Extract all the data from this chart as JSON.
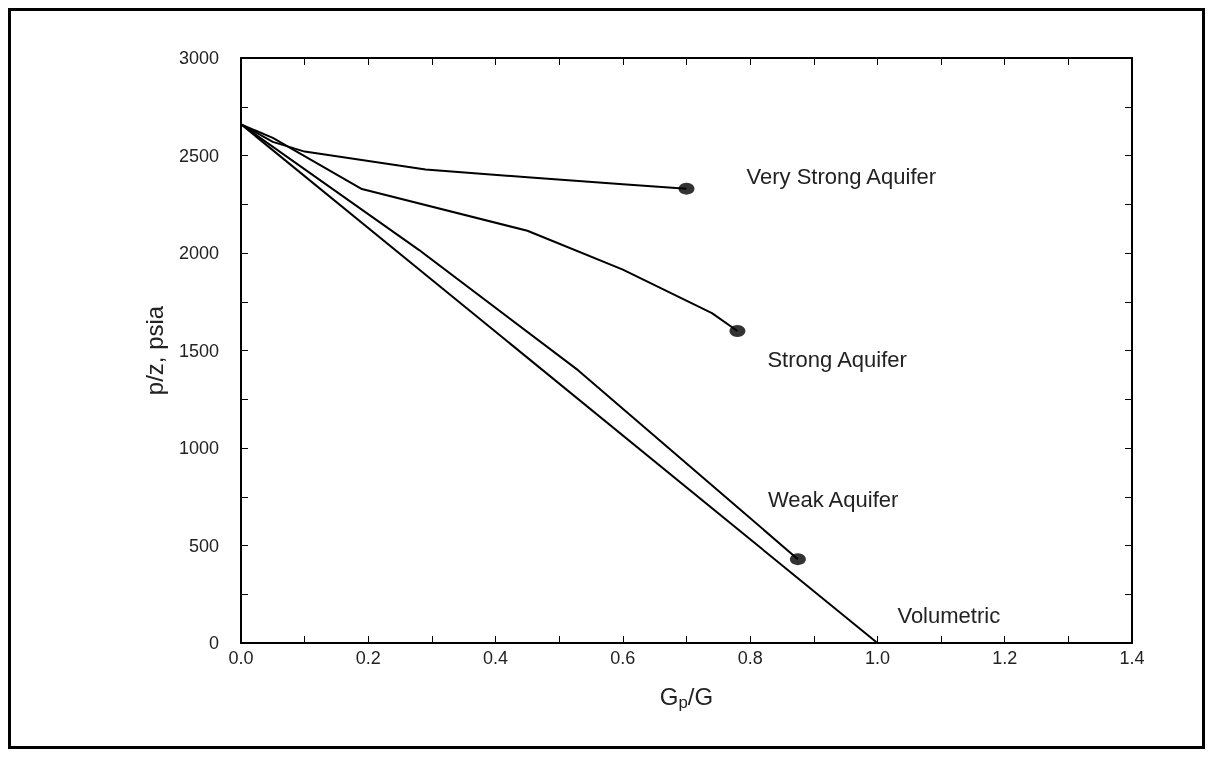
{
  "chart_data": {
    "type": "line",
    "xlabel": "G$_{p}$/G",
    "ylabel": "p/z, psia",
    "xlim": [
      0,
      1.4
    ],
    "xticks": [
      {
        "value": 0,
        "label": "0.0"
      },
      {
        "value": 0.2,
        "label": "0.2"
      },
      {
        "value": 0.4,
        "label": "0.4"
      },
      {
        "value": 0.6,
        "label": "0.6"
      },
      {
        "value": 0.8,
        "label": "0.8"
      },
      {
        "value": 1,
        "label": "1.0"
      },
      {
        "value": 1.2,
        "label": "1.2"
      },
      {
        "value": 1.4,
        "label": "1.4"
      }
    ],
    "ylim": [
      0,
      3000
    ],
    "yticks": [
      0,
      500,
      1000,
      1500,
      2000,
      2500,
      3000
    ],
    "grid": false,
    "legend": false,
    "line_style": "solid",
    "series": [
      {
        "name": "Very Strong Aquifer",
        "color": "#000000",
        "x": [
          0,
          0.05,
          0.1,
          0.29,
          0.45,
          0.6,
          0.7
        ],
        "values": [
          2660,
          2570,
          2520,
          2428,
          2388,
          2353,
          2330
        ]
      },
      {
        "name": "Strong Aquifer",
        "color": "#000000",
        "x": [
          0,
          0.05,
          0.19,
          0.45,
          0.6,
          0.74,
          0.78
        ],
        "values": [
          2660,
          2590,
          2328,
          2114,
          1915,
          1692,
          1600
        ]
      },
      {
        "name": "Weak Aquifer",
        "color": "#000000",
        "x": [
          0,
          0.28,
          0.53,
          0.875
        ],
        "values": [
          2660,
          2015,
          1398,
          430
        ]
      },
      {
        "name": "Volumetric",
        "color": "#000000",
        "x": [
          0,
          1.0
        ],
        "values": [
          2660,
          0
        ]
      },
      {
        "type": "scatter",
        "color": "#000000",
        "marker": "circle",
        "x": [
          0.7,
          0.78,
          0.875
        ],
        "values": [
          2330,
          1600,
          430
        ]
      }
    ]
  }
}
